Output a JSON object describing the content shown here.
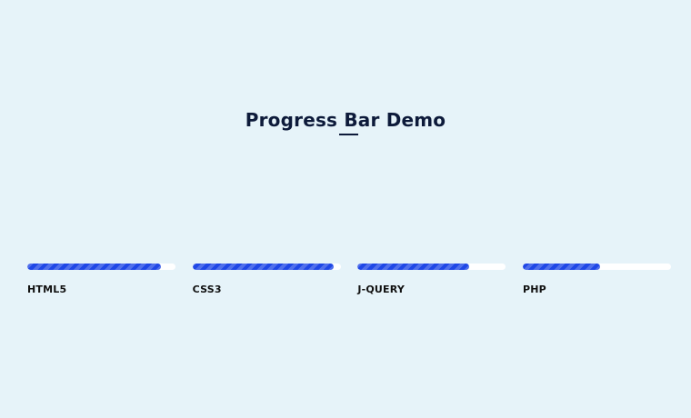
{
  "page": {
    "title": "Progress Bar Demo"
  },
  "colors": {
    "background": "#e6f3f9",
    "bar_fill": "#1f47e6",
    "bar_track": "#ffffff",
    "title": "#0d1a3a"
  },
  "skills": [
    {
      "label": "HTML5",
      "percent": 90
    },
    {
      "label": "CSS3",
      "percent": 95
    },
    {
      "label": "J-QUERY",
      "percent": 75
    },
    {
      "label": "PHP",
      "percent": 52
    }
  ]
}
